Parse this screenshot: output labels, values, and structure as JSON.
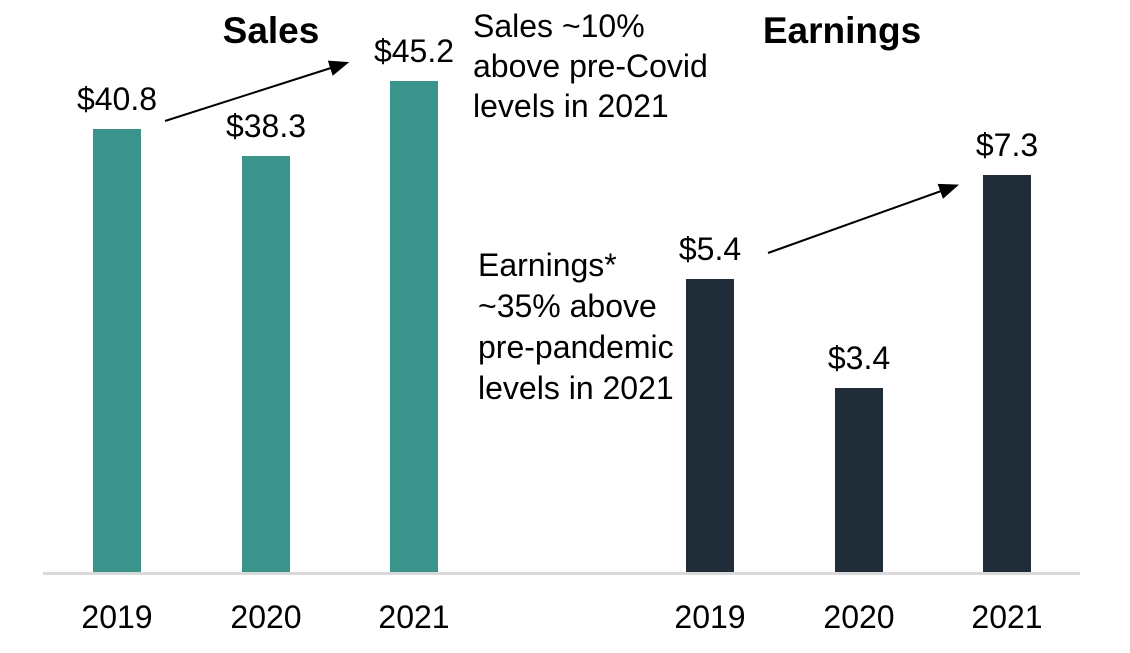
{
  "chart_data": {
    "type": "bar",
    "title": "",
    "subtitle": "",
    "currency_prefix": "$",
    "legend": "none",
    "grid": "off",
    "text_color": "#000000",
    "baseline_color": "#D9D9D9",
    "arrow_color": "#000000",
    "groups": [
      {
        "title": "Sales",
        "color": "#3A948C",
        "categories": [
          "2019",
          "2020",
          "2021"
        ],
        "values": [
          40.8,
          38.3,
          45.2
        ],
        "bar_labels": [
          "$40.8",
          "$38.3",
          "$45.2"
        ]
      },
      {
        "title": "Earnings",
        "color": "#212C39",
        "categories": [
          "2019",
          "2020",
          "2021"
        ],
        "values": [
          5.4,
          3.4,
          7.3
        ],
        "bar_labels": [
          "$5.4",
          "$3.4",
          "$7.3"
        ]
      }
    ],
    "annotations": [
      {
        "text": "Sales ~10% above pre-Covid levels in 2021",
        "lines": [
          "Sales ~10%",
          "above pre-Covid",
          "levels in 2021"
        ]
      },
      {
        "text": "Earnings* ~35% above pre-pandemic levels in 2021",
        "lines": [
          "Earnings*",
          "~35% above",
          "pre-pandemic",
          "levels in 2021"
        ]
      }
    ],
    "layout_hints": {
      "value_labels_position": "above bars",
      "x_axis": "shared baseline for both groups",
      "arrows": [
        {
          "from": "right of $40.8 label",
          "to": "top of 2021 Sales bar"
        },
        {
          "from": "right of $5.4 label",
          "to": "top of 2021 Earnings bar"
        }
      ]
    }
  }
}
